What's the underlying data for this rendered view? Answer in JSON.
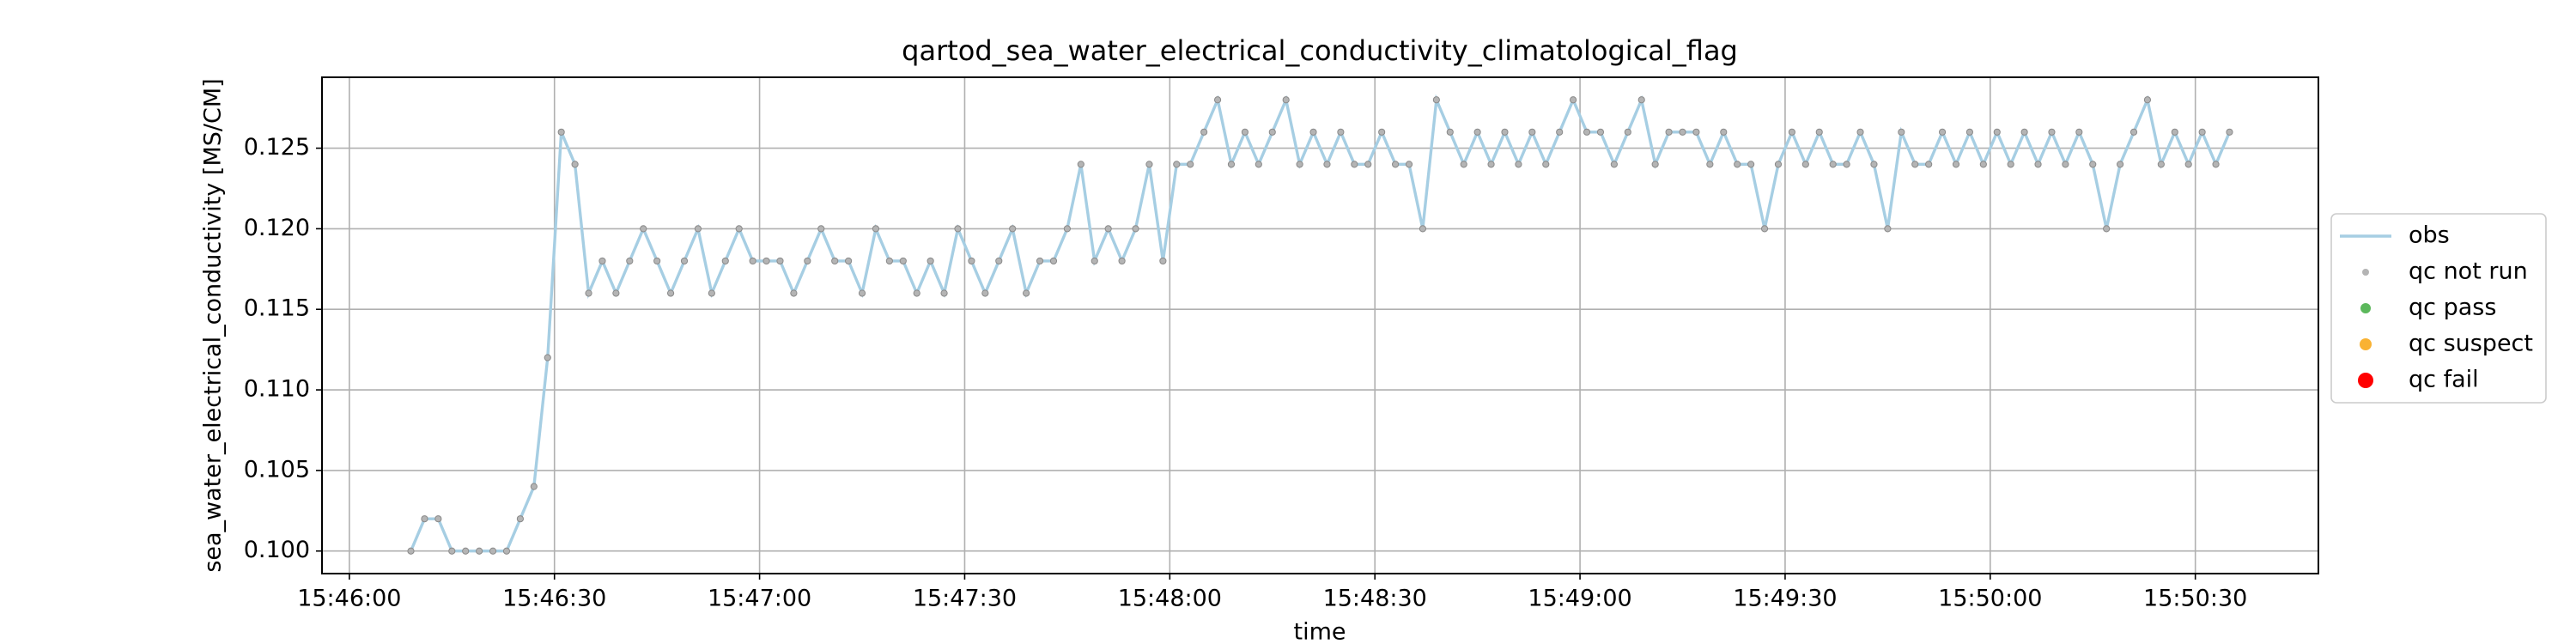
{
  "chart_data": {
    "type": "line",
    "title": "qartod_sea_water_electrical_conductivity_climatological_flag",
    "xlabel": "time",
    "ylabel": "sea_water_electrical_conductivity [MS/CM]",
    "x": [
      "15:46:09",
      "15:46:11",
      "15:46:13",
      "15:46:15",
      "15:46:17",
      "15:46:19",
      "15:46:21",
      "15:46:23",
      "15:46:25",
      "15:46:27",
      "15:46:29",
      "15:46:31",
      "15:46:33",
      "15:46:35",
      "15:46:37",
      "15:46:39",
      "15:46:41",
      "15:46:43",
      "15:46:45",
      "15:46:47",
      "15:46:49",
      "15:46:51",
      "15:46:53",
      "15:46:55",
      "15:46:57",
      "15:46:59",
      "15:47:01",
      "15:47:03",
      "15:47:05",
      "15:47:07",
      "15:47:09",
      "15:47:11",
      "15:47:13",
      "15:47:15",
      "15:47:17",
      "15:47:19",
      "15:47:21",
      "15:47:23",
      "15:47:25",
      "15:47:27",
      "15:47:29",
      "15:47:31",
      "15:47:33",
      "15:47:35",
      "15:47:37",
      "15:47:39",
      "15:47:41",
      "15:47:43",
      "15:47:45",
      "15:47:47",
      "15:47:49",
      "15:47:51",
      "15:47:53",
      "15:47:55",
      "15:47:57",
      "15:47:59",
      "15:48:01",
      "15:48:03",
      "15:48:05",
      "15:48:07",
      "15:48:09",
      "15:48:11",
      "15:48:13",
      "15:48:15",
      "15:48:17",
      "15:48:19",
      "15:48:21",
      "15:48:23",
      "15:48:25",
      "15:48:27",
      "15:48:29",
      "15:48:31",
      "15:48:33",
      "15:48:35",
      "15:48:37",
      "15:48:39",
      "15:48:41",
      "15:48:43",
      "15:48:45",
      "15:48:47",
      "15:48:49",
      "15:48:51",
      "15:48:53",
      "15:48:55",
      "15:48:57",
      "15:48:59",
      "15:49:01",
      "15:49:03",
      "15:49:05",
      "15:49:07",
      "15:49:09",
      "15:49:11",
      "15:49:13",
      "15:49:15",
      "15:49:17",
      "15:49:19",
      "15:49:21",
      "15:49:23",
      "15:49:25",
      "15:49:27",
      "15:49:29",
      "15:49:31",
      "15:49:33",
      "15:49:35",
      "15:49:37",
      "15:49:39",
      "15:49:41",
      "15:49:43",
      "15:49:45",
      "15:49:47",
      "15:49:49",
      "15:49:51",
      "15:49:53",
      "15:49:55",
      "15:49:57",
      "15:49:59",
      "15:50:01",
      "15:50:03",
      "15:50:05",
      "15:50:07",
      "15:50:09",
      "15:50:11",
      "15:50:13",
      "15:50:15",
      "15:50:17",
      "15:50:19",
      "15:50:21",
      "15:50:23",
      "15:50:25",
      "15:50:27",
      "15:50:29",
      "15:50:31",
      "15:50:33",
      "15:50:35"
    ],
    "series": [
      {
        "name": "obs",
        "color": "#a6cee3",
        "values": [
          0.1,
          0.102,
          0.102,
          0.1,
          0.1,
          0.1,
          0.1,
          0.1,
          0.102,
          0.104,
          0.112,
          0.126,
          0.124,
          0.116,
          0.118,
          0.116,
          0.118,
          0.12,
          0.118,
          0.116,
          0.118,
          0.12,
          0.116,
          0.118,
          0.12,
          0.118,
          0.118,
          0.118,
          0.116,
          0.118,
          0.12,
          0.118,
          0.118,
          0.116,
          0.12,
          0.118,
          0.118,
          0.116,
          0.118,
          0.116,
          0.12,
          0.118,
          0.116,
          0.118,
          0.12,
          0.116,
          0.118,
          0.118,
          0.12,
          0.124,
          0.118,
          0.12,
          0.118,
          0.12,
          0.124,
          0.118,
          0.124,
          0.124,
          0.126,
          0.128,
          0.124,
          0.126,
          0.124,
          0.126,
          0.128,
          0.124,
          0.126,
          0.124,
          0.126,
          0.124,
          0.124,
          0.126,
          0.124,
          0.124,
          0.12,
          0.128,
          0.126,
          0.124,
          0.126,
          0.124,
          0.126,
          0.124,
          0.126,
          0.124,
          0.126,
          0.128,
          0.126,
          0.126,
          0.124,
          0.126,
          0.128,
          0.124,
          0.126,
          0.126,
          0.126,
          0.124,
          0.126,
          0.124,
          0.124,
          0.12,
          0.124,
          0.126,
          0.124,
          0.126,
          0.124,
          0.124,
          0.126,
          0.124,
          0.12,
          0.126,
          0.124,
          0.124,
          0.126,
          0.124,
          0.126,
          0.124,
          0.126,
          0.124,
          0.126,
          0.124,
          0.126,
          0.124,
          0.126,
          0.124,
          0.12,
          0.124,
          0.126,
          0.128,
          0.124,
          0.126,
          0.124,
          0.126,
          0.124,
          0.126
        ]
      }
    ],
    "flags": [
      {
        "name": "qc not run",
        "color": "#b4b4b4"
      },
      {
        "name": "qc pass",
        "color": "#5cb85c"
      },
      {
        "name": "qc suspect",
        "color": "#f9b233"
      },
      {
        "name": "qc fail",
        "color": "#ff0000"
      }
    ],
    "xlim": [
      "15:45:56",
      "15:50:48"
    ],
    "xticks": [
      "15:46:00",
      "15:46:30",
      "15:47:00",
      "15:47:30",
      "15:48:00",
      "15:48:30",
      "15:49:00",
      "15:49:30",
      "15:50:00",
      "15:50:30"
    ],
    "ylim": [
      0.0986,
      0.1294
    ],
    "yticks": [
      {
        "value": 0.1,
        "label": "0.100"
      },
      {
        "value": 0.105,
        "label": "0.105"
      },
      {
        "value": 0.11,
        "label": "0.110"
      },
      {
        "value": 0.115,
        "label": "0.115"
      },
      {
        "value": 0.12,
        "label": "0.120"
      },
      {
        "value": 0.125,
        "label": "0.125"
      }
    ],
    "grid": true,
    "legend": "right"
  }
}
